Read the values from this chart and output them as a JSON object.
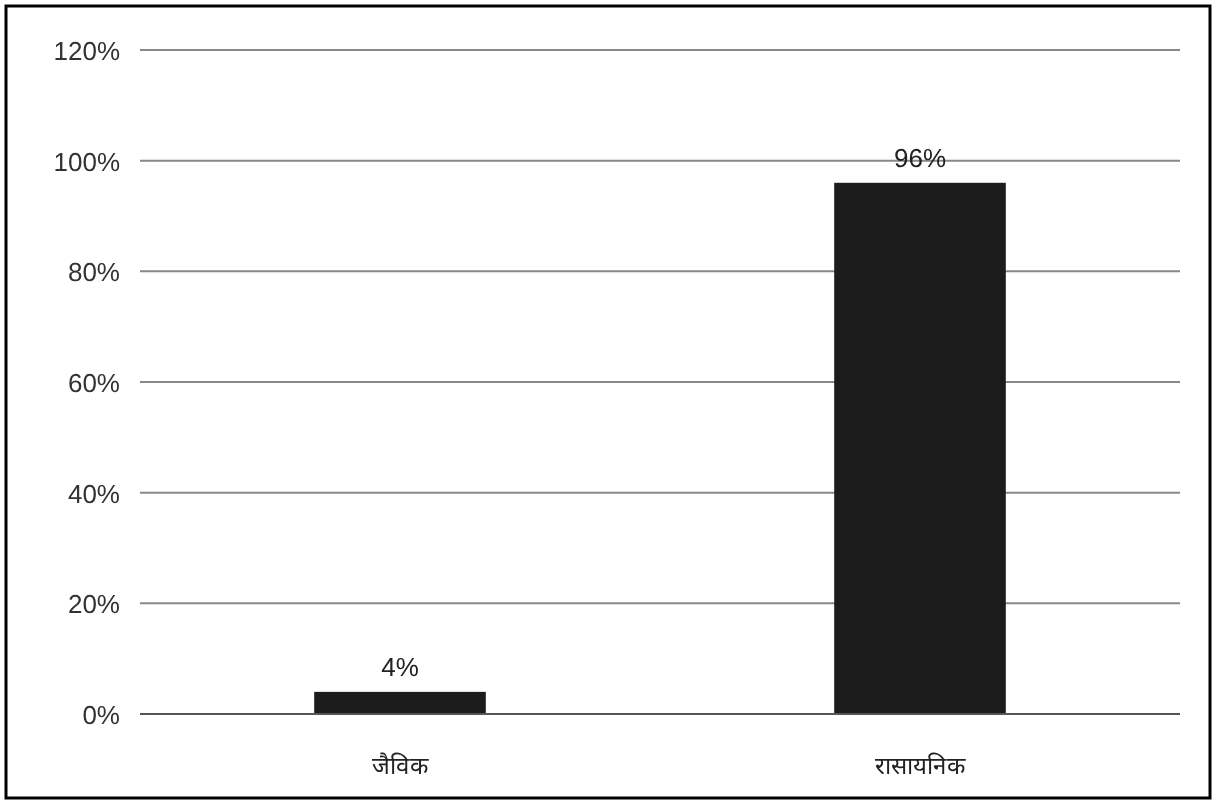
{
  "chart_data": {
    "type": "bar",
    "categories": [
      "जैविक",
      "रासायनिक"
    ],
    "values": [
      4,
      96
    ],
    "color": "#1c1c1c",
    "ylim": [
      0,
      120
    ],
    "yticks": [
      {
        "value": 0,
        "label": "0%"
      },
      {
        "value": 20,
        "label": "20%"
      },
      {
        "value": 40,
        "label": "40%"
      },
      {
        "value": 60,
        "label": "60%"
      },
      {
        "value": 80,
        "label": "80%"
      },
      {
        "value": 100,
        "label": "100%"
      },
      {
        "value": 120,
        "label": "120%"
      }
    ],
    "grid": "y",
    "value_labels": [
      "4%",
      "96%"
    ]
  }
}
